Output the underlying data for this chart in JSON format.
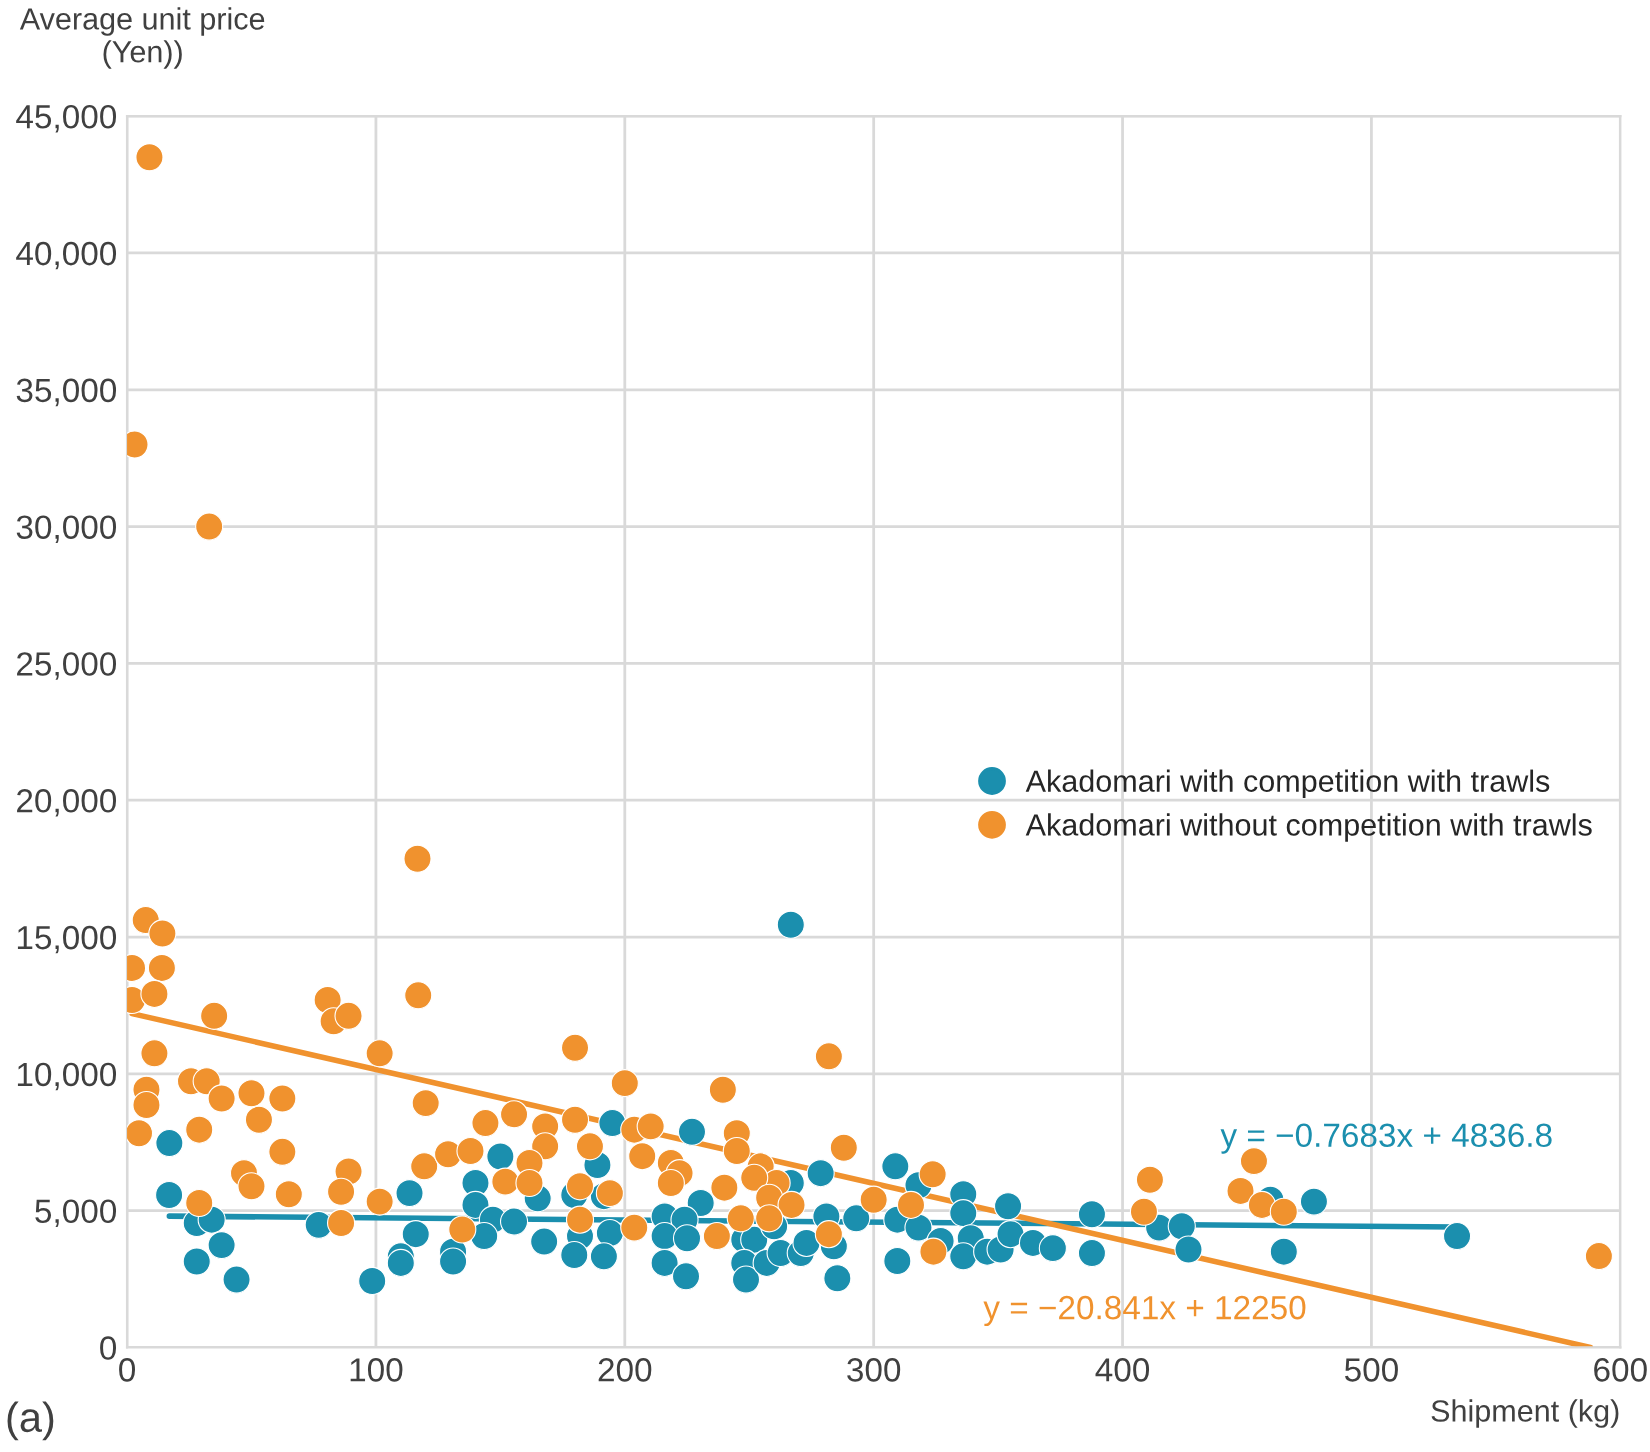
{
  "chart_data": {
    "type": "scatter",
    "xlabel": "Shipment (kg)",
    "ylabel": "Average unit price\n(Yen))",
    "xlim": [
      0,
      600
    ],
    "xticks": [
      0,
      100,
      200,
      300,
      400,
      500,
      600
    ],
    "ylim": [
      0,
      45000
    ],
    "yticks": [
      {
        "value": 0,
        "label": "0"
      },
      {
        "value": 5000,
        "label": "5,000"
      },
      {
        "value": 10000,
        "label": "10,000"
      },
      {
        "value": 15000,
        "label": "15,000"
      },
      {
        "value": 20000,
        "label": "20,000"
      },
      {
        "value": 25000,
        "label": "25,000"
      },
      {
        "value": 30000,
        "label": "30,000"
      },
      {
        "value": 35000,
        "label": "35,000"
      },
      {
        "value": 40000,
        "label": "40,000"
      },
      {
        "value": 45000,
        "label": "45,000"
      }
    ],
    "grid": true,
    "legend": "right",
    "series": [
      {
        "name": "Akadomari with competition with trawls",
        "color": "#1b8fae",
        "marker": "circle",
        "x": [
          17,
          16.9,
          28,
          34,
          38,
          28,
          44,
          77,
          98.5,
          113.5,
          116,
          110,
          110,
          131,
          131,
          140,
          140,
          150,
          147,
          143.5,
          155.5,
          165,
          167.6,
          179.7,
          182,
          179.7,
          189,
          191.6,
          194,
          191.6,
          195,
          266.7,
          227,
          278.7,
          266.7,
          230.5,
          216,
          224,
          216,
          225,
          216,
          224.6,
          248,
          252,
          248,
          248.7,
          257,
          262.6,
          270.7,
          273,
          260,
          281,
          284,
          285.4,
          293,
          308.7,
          318,
          309.5,
          318,
          309.5,
          326.9,
          336,
          336,
          339,
          336,
          345.6,
          351,
          354,
          355,
          364,
          372,
          387.7,
          387.7,
          414.7,
          423.8,
          426.5,
          459.4,
          464.8,
          476.9,
          534.4
        ],
        "values": [
          7470,
          5570,
          4550,
          4670,
          3740,
          3140,
          2480,
          4480,
          2430,
          5640,
          4140,
          3330,
          3090,
          3500,
          3140,
          6010,
          5210,
          6980,
          4670,
          4070,
          4600,
          5450,
          3870,
          5570,
          4070,
          3380,
          6670,
          5530,
          4180,
          3330,
          8200,
          15450,
          7880,
          6370,
          6010,
          5280,
          4790,
          4670,
          4070,
          3990,
          3090,
          2600,
          3940,
          3940,
          3090,
          2480,
          3090,
          3450,
          3450,
          3820,
          4430,
          4790,
          3700,
          2530,
          4720,
          6620,
          5930,
          4670,
          4380,
          3160,
          3890,
          5600,
          4910,
          3990,
          3330,
          3500,
          3580,
          5160,
          4140,
          3820,
          3630,
          4870,
          3450,
          4380,
          4430,
          3580,
          5400,
          3500,
          5330,
          4070
        ]
      },
      {
        "name": "Akadomari without competition with trawls",
        "color": "#f0922e",
        "marker": "circle",
        "x": [
          9,
          3,
          33,
          116.7,
          7.5,
          14.2,
          2,
          14,
          2,
          11,
          35,
          80.6,
          83,
          89,
          117,
          11,
          101.5,
          180,
          7.8,
          7.8,
          25.7,
          32,
          38,
          50,
          62.4,
          53,
          4.8,
          29,
          120,
          144,
          155.5,
          168,
          168,
          180,
          186,
          62.4,
          47,
          50,
          65,
          89,
          86,
          101.5,
          29,
          86,
          119.4,
          129,
          138,
          152,
          161.7,
          161.7,
          182,
          194,
          182,
          134.7,
          200,
          239.4,
          282,
          203.8,
          210.4,
          207,
          245,
          245,
          218.5,
          222,
          218.5,
          240,
          254.6,
          261,
          252,
          258,
          267,
          288,
          246.6,
          258,
          237,
          203.8,
          282,
          300,
          315,
          323.7,
          324,
          411,
          408.6,
          452.8,
          447.4,
          456,
          464.8,
          591.4
        ],
        "values": [
          43500,
          33000,
          30000,
          17860,
          15620,
          15130,
          13870,
          13870,
          12700,
          12920,
          12120,
          12700,
          11920,
          12120,
          12870,
          10750,
          10750,
          10950,
          9420,
          8860,
          9730,
          9730,
          9100,
          9290,
          9100,
          8320,
          7830,
          7960,
          8930,
          8200,
          8520,
          8080,
          7350,
          8320,
          7350,
          7150,
          6370,
          5890,
          5600,
          6430,
          5690,
          5330,
          5280,
          4550,
          6620,
          7060,
          7180,
          6060,
          6740,
          6010,
          5890,
          5640,
          4670,
          4310,
          9660,
          9420,
          10640,
          7960,
          8080,
          6990,
          7830,
          7180,
          6740,
          6370,
          6010,
          5840,
          6620,
          6010,
          6200,
          5470,
          5210,
          7300,
          4720,
          4720,
          4070,
          4380,
          4140,
          5400,
          5210,
          6330,
          3500,
          6130,
          4960,
          6810,
          5720,
          5210,
          4960,
          3340
        ]
      },
      {
        "type": "line",
        "color": "#1b8fae",
        "x": [
          17,
          534
        ],
        "values": [
          4800,
          4400
        ]
      },
      {
        "type": "line",
        "color": "#f0922e",
        "x": [
          2,
          588
        ],
        "values": [
          12200,
          0
        ]
      }
    ],
    "annotations": [
      "y = −0.7683x + 4836.8",
      "y = −20.841x + 12250",
      "(a)"
    ]
  }
}
